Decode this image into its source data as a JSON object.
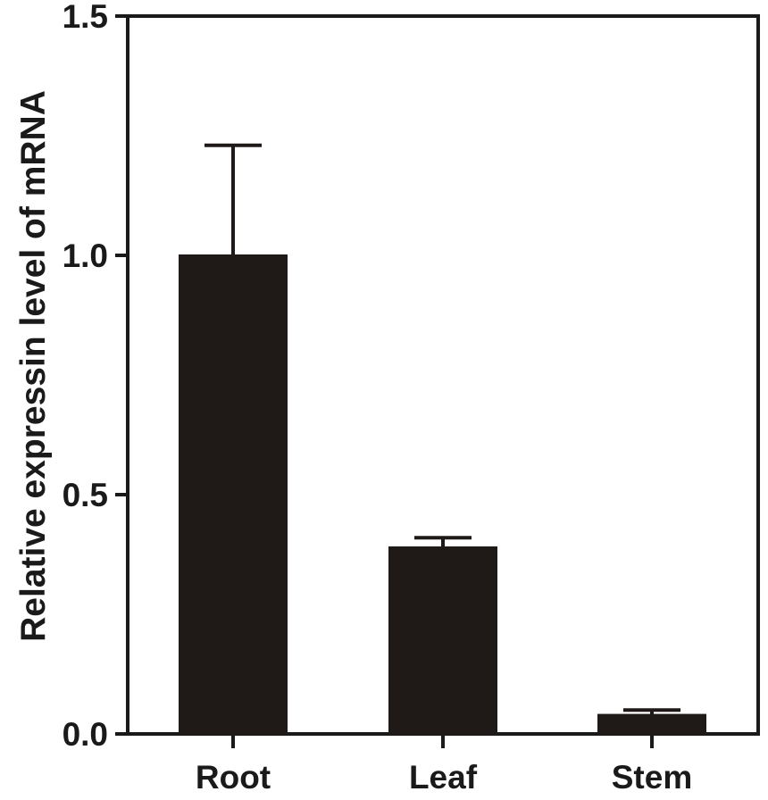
{
  "chart_data": {
    "type": "bar",
    "title": "",
    "xlabel": "",
    "ylabel": "Relative expressin level of mRNA",
    "categories": [
      "Root",
      "Leaf",
      "Stem"
    ],
    "values": [
      1.0,
      0.39,
      0.04
    ],
    "errors": [
      0.23,
      0.02,
      0.01
    ],
    "ylim": [
      0,
      1.5
    ],
    "yticks": [
      0.0,
      0.5,
      1.0,
      1.5
    ],
    "ytick_labels": [
      "0.0",
      "0.5",
      "1.0",
      "1.5"
    ],
    "grid": false,
    "legend": "none",
    "bar_color": "#1f1a17",
    "axis_color": "#1a1a1a"
  }
}
